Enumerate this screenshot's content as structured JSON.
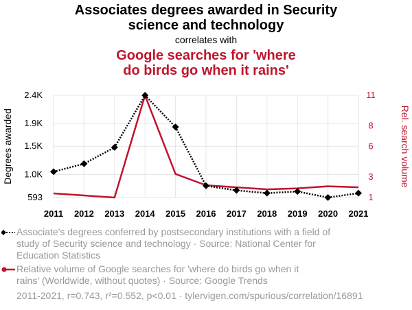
{
  "title_line1": "Associates degrees awarded in Security",
  "title_line2": "science and technology",
  "subtitle": "correlates with",
  "title2_line1": "Google searches for 'where",
  "title2_line2": "do birds go when it rains'",
  "colors": {
    "series1": "#000000",
    "series2": "#c0142c",
    "grid": "#e6e6e6",
    "muted": "#999999"
  },
  "chart_data": {
    "type": "line",
    "x": [
      2011,
      2012,
      2013,
      2014,
      2015,
      2016,
      2017,
      2018,
      2019,
      2020,
      2021
    ],
    "xtick_labels": [
      "2011",
      "2012",
      "2013",
      "2014",
      "2015",
      "2016",
      "2017",
      "2018",
      "2019",
      "2020",
      "2021"
    ],
    "left_axis": {
      "label": "Degrees awarded",
      "ylim": [
        593,
        2400
      ],
      "ticks": [
        593,
        1000,
        1500,
        1900,
        2400
      ],
      "tick_labels": [
        "593",
        "1.0K",
        "1.5K",
        "1.9K",
        "2.4K"
      ]
    },
    "right_axis": {
      "label": "Rel. search volume",
      "ylim": [
        1,
        11
      ],
      "ticks": [
        1,
        3,
        6,
        8,
        11
      ],
      "tick_labels": [
        "1",
        "3",
        "6",
        "8",
        "11"
      ]
    },
    "series": [
      {
        "name": "Associate's degrees conferred by postsecondary institutions with a field of study of Security science and technology",
        "axis": "left",
        "style": "dotted",
        "marker": "diamond",
        "values": [
          1050,
          1190,
          1480,
          2400,
          1840,
          800,
          720,
          670,
          700,
          593,
          670
        ]
      },
      {
        "name": "Relative volume of Google searches for 'where do birds go when it rains' (Worldwide, without quotes)",
        "axis": "right",
        "style": "solid",
        "marker": "none",
        "values": [
          1.4,
          1.2,
          1.0,
          11.0,
          3.3,
          2.2,
          2.0,
          1.8,
          1.9,
          2.1,
          2.0
        ]
      }
    ]
  },
  "legend": [
    {
      "line1": "Associate's degrees conferred by postsecondary institutions with a field of",
      "line2": "study of Security science and technology · Source: National Center for",
      "line3": "Education Statistics"
    },
    {
      "line1": "Relative volume of Google searches for 'where do birds go when it",
      "line2": "rains' (Worldwide, without quotes) · Source: Google Trends"
    }
  ],
  "footer": "2011-2021, r=0.743, r²=0.552, p<0.01 · tylervigen.com/spurious/correlation/16891"
}
